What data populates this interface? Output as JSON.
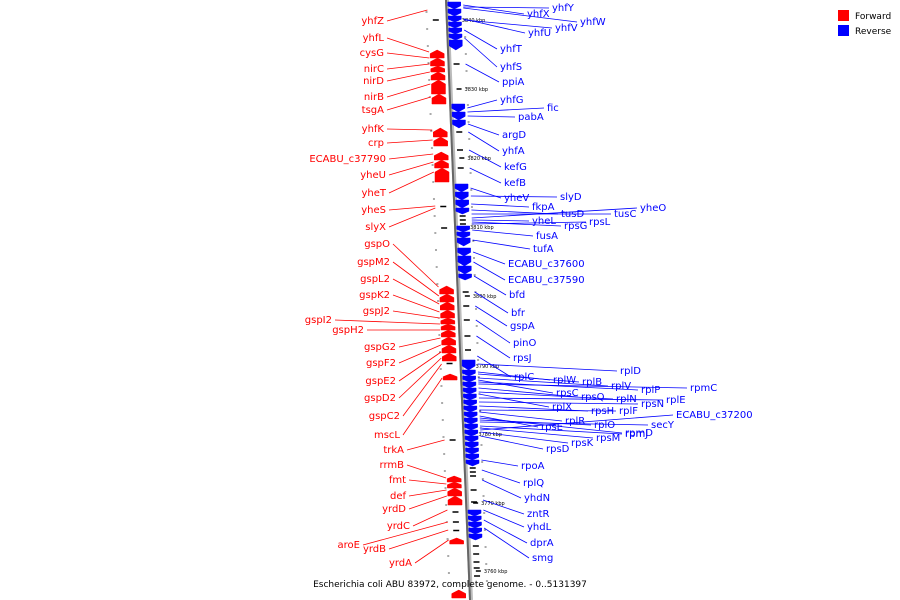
{
  "caption": "Escherichia coli ABU 83972, complete genome. - 0..5131397",
  "legend": {
    "forward": {
      "label": "Forward",
      "color": "#ff0000"
    },
    "reverse": {
      "label": "Reverse",
      "color": "#0000ff"
    }
  },
  "ticks": [
    "3760 kbp",
    "3770 kbp",
    "3780 kbp",
    "3790 kbp",
    "3800 kbp",
    "3810 kbp",
    "3820 kbp",
    "3830 kbp",
    "3840 kbp"
  ],
  "forward_genes": [
    "yhfZ",
    "yhfL",
    "cysG",
    "nirC",
    "nirD",
    "nirB",
    "tsgA",
    "yhfK",
    "crp",
    "ECABU_c37790",
    "yheU",
    "yheT",
    "yheS",
    "slyX",
    "gspO",
    "gspM2",
    "gspL2",
    "gspK2",
    "gspJ2",
    "gspI2",
    "gspH2",
    "gspG2",
    "gspF2",
    "gspE2",
    "gspD2",
    "gspC2",
    "mscL",
    "trkA",
    "rrmB",
    "fmt",
    "def",
    "yrdD",
    "yrdC",
    "aroE",
    "yrdB",
    "yrdA"
  ],
  "reverse_genes": [
    "yhfX",
    "yhfY",
    "yhfW",
    "yhfU",
    "yhfV",
    "yhfT",
    "yhfS",
    "ppiA",
    "yhfG",
    "fic",
    "pabA",
    "argD",
    "yhfA",
    "kefG",
    "kefB",
    "yheV",
    "slyD",
    "fkpA",
    "tusD",
    "tusC",
    "yheO",
    "yheL",
    "rpsG",
    "rpsL",
    "fusA",
    "tufA",
    "ECABU_c37600",
    "ECABU_c37590",
    "bfd",
    "bfr",
    "gspA",
    "pinO",
    "rpsJ",
    "rplC",
    "rplD",
    "rplW",
    "rplB",
    "rplV",
    "rpsC",
    "rplP",
    "rpmC",
    "rpsQ",
    "rplN",
    "rplX",
    "rplE",
    "rpsN",
    "rpsH",
    "rplF",
    "rplR",
    "rpsE",
    "rpmD",
    "rplO",
    "secY",
    "rpmJ",
    "rpsM",
    "ECABU_c37200",
    "rpsK",
    "rpsD",
    "rpoA",
    "rplQ",
    "yhdN",
    "zntR",
    "yhdL",
    "dprA",
    "smg"
  ]
}
